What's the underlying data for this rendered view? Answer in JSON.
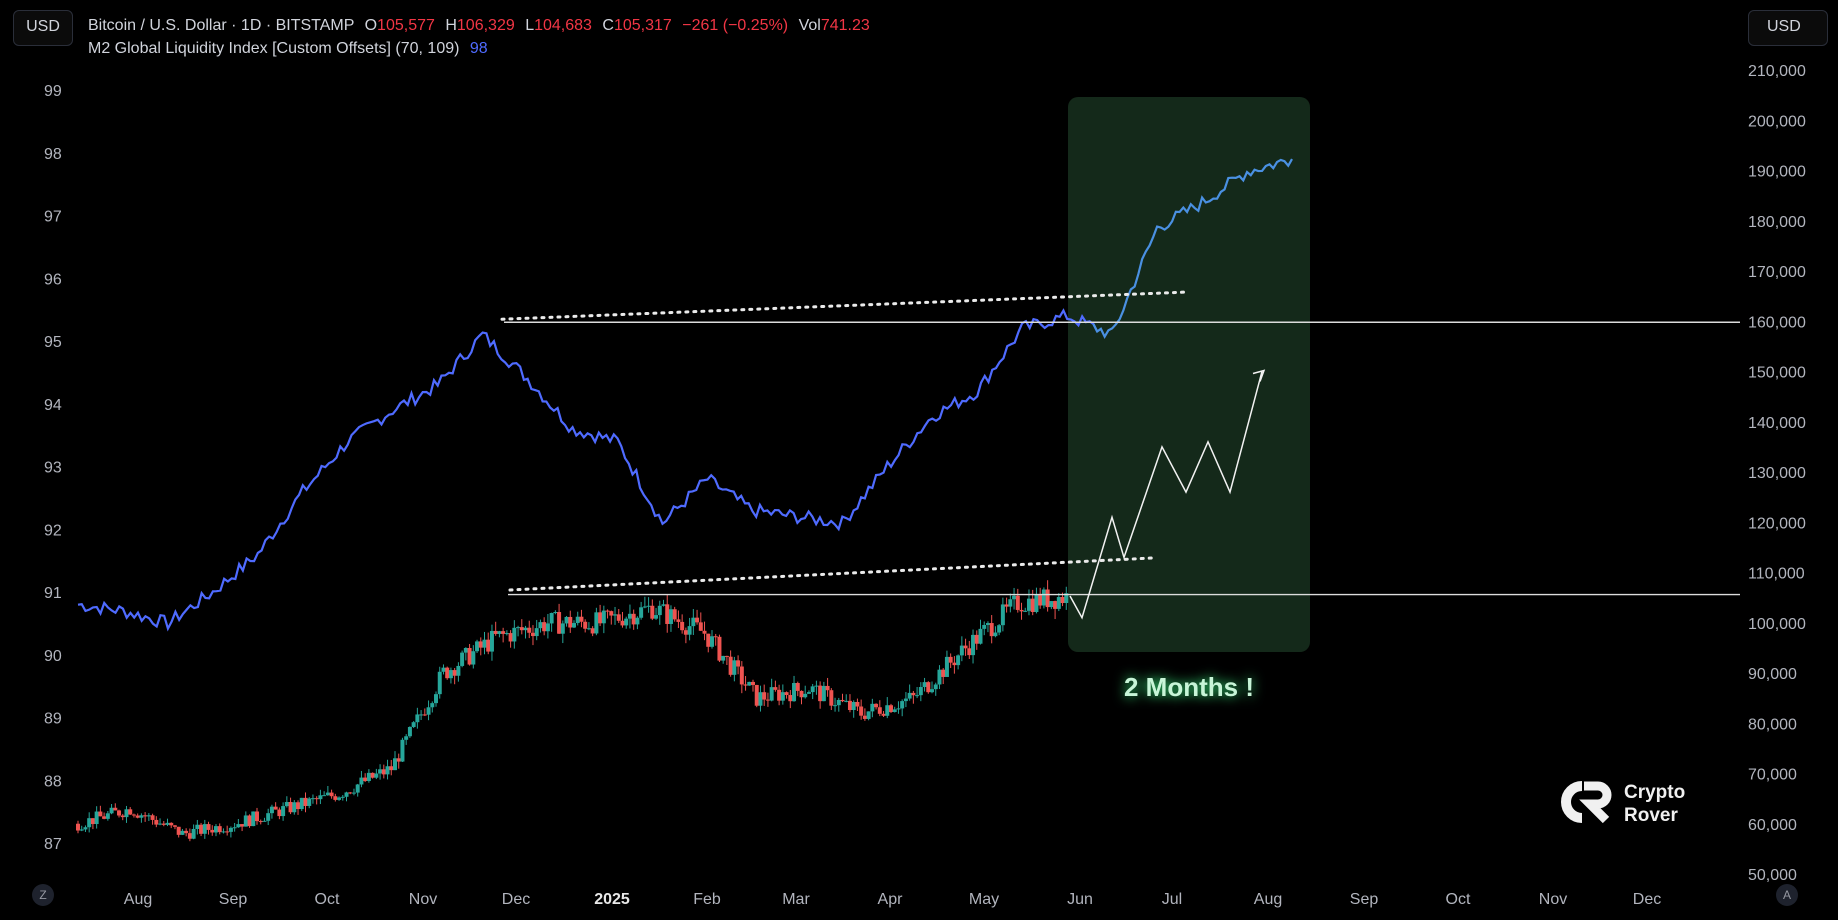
{
  "header": {
    "currency_left": "USD",
    "currency_right": "USD",
    "symbol": "Bitcoin / U.S. Dollar · 1D · BITSTAMP",
    "o_label": "O",
    "o_value": "105,577",
    "h_label": "H",
    "h_value": "106,329",
    "l_label": "L",
    "l_value": "104,683",
    "c_label": "C",
    "c_value": "105,317",
    "change": "−261 (−0.25%)",
    "vol_label": "Vol",
    "vol_value": "741.23",
    "indicator": "M2 Global Liquidity Index [Custom Offsets] (70, 109)",
    "indicator_value": "98"
  },
  "buttons": {
    "mode_left": "Z",
    "mode_right": "A"
  },
  "brand": {
    "line1": "Crypto",
    "line2": "Rover"
  },
  "colors": {
    "m2_line": "#4f6bff",
    "m2_projection": "#4a90e2",
    "up": "#26a69a",
    "down": "#ef5350",
    "highlight": "#14291a",
    "annotation": "#c8f5d8"
  },
  "chart_data": {
    "type": "line",
    "x_ticks": [
      "Aug",
      "Sep",
      "Oct",
      "Nov",
      "Dec",
      "2025",
      "Feb",
      "Mar",
      "Apr",
      "May",
      "Jun",
      "Jul",
      "Aug",
      "Sep",
      "Oct",
      "Nov",
      "Dec"
    ],
    "left_axis": {
      "ticks": [
        "87",
        "88",
        "89",
        "90",
        "91",
        "92",
        "93",
        "94",
        "95",
        "96",
        "97",
        "98",
        "99"
      ],
      "range": [
        86.7,
        99.2
      ]
    },
    "right_axis": {
      "ticks": [
        "50,000",
        "60,000",
        "70,000",
        "80,000",
        "90,000",
        "100,000",
        "110,000",
        "120,000",
        "130,000",
        "140,000",
        "150,000",
        "160,000",
        "170,000",
        "180,000",
        "190,000",
        "200,000",
        "210,000"
      ],
      "range": [
        50000,
        210000
      ]
    },
    "series": [
      {
        "name": "M2 Global Liquidity Index [Custom Offsets] (70, 109)",
        "axis": "left",
        "points": [
          [
            "Aug",
            90.8
          ],
          [
            "Aug",
            90.7
          ],
          [
            "Sep",
            90.5
          ],
          [
            "Sep",
            91.0
          ],
          [
            "Oct",
            91.6
          ],
          [
            "Oct",
            92.6
          ],
          [
            "Nov",
            93.4
          ],
          [
            "Nov",
            93.9
          ],
          [
            "Dec",
            94.3
          ],
          [
            "Dec",
            95.1
          ],
          [
            "Dec",
            94.4
          ],
          [
            "2025",
            93.6
          ],
          [
            "2025",
            93.4
          ],
          [
            "Feb",
            92.1
          ],
          [
            "Feb",
            92.8
          ],
          [
            "Mar",
            92.3
          ],
          [
            "Mar",
            92.2
          ],
          [
            "Apr",
            92.1
          ],
          [
            "Apr",
            93.0
          ],
          [
            "May",
            93.8
          ],
          [
            "May",
            94.2
          ],
          [
            "Jun",
            95.2
          ],
          [
            "Jun",
            95.4
          ],
          [
            "Jun",
            95.1
          ],
          [
            "Jul",
            96.8
          ],
          [
            "Jul",
            97.2
          ],
          [
            "Aug",
            97.7
          ],
          [
            "Aug",
            97.9
          ]
        ]
      },
      {
        "name": "Bitcoin / U.S. Dollar · 1D · BITSTAMP",
        "axis": "right",
        "type": "candlestick",
        "points": [
          [
            "Aug",
            60000
          ],
          [
            "Aug",
            63000
          ],
          [
            "Sep",
            58000
          ],
          [
            "Sep",
            60000
          ],
          [
            "Oct",
            63000
          ],
          [
            "Oct",
            66000
          ],
          [
            "Nov",
            71000
          ],
          [
            "Nov",
            90000
          ],
          [
            "Dec",
            97000
          ],
          [
            "Dec",
            100000
          ],
          [
            "2025",
            100000
          ],
          [
            "Feb",
            103000
          ],
          [
            "Feb",
            98000
          ],
          [
            "Mar",
            85000
          ],
          [
            "Mar",
            87000
          ],
          [
            "Apr",
            82000
          ],
          [
            "Apr",
            85000
          ],
          [
            "May",
            95000
          ],
          [
            "May",
            104000
          ],
          [
            "Jun",
            105317
          ]
        ]
      }
    ],
    "annotations": {
      "text": "2 Months !",
      "highlight_x_range": [
        "Jun",
        "Aug"
      ],
      "horizontal_levels": [
        160000,
        106000
      ],
      "btc_projection": [
        105317,
        121000,
        113000,
        135000,
        126000,
        136000,
        126000,
        150000
      ]
    }
  }
}
